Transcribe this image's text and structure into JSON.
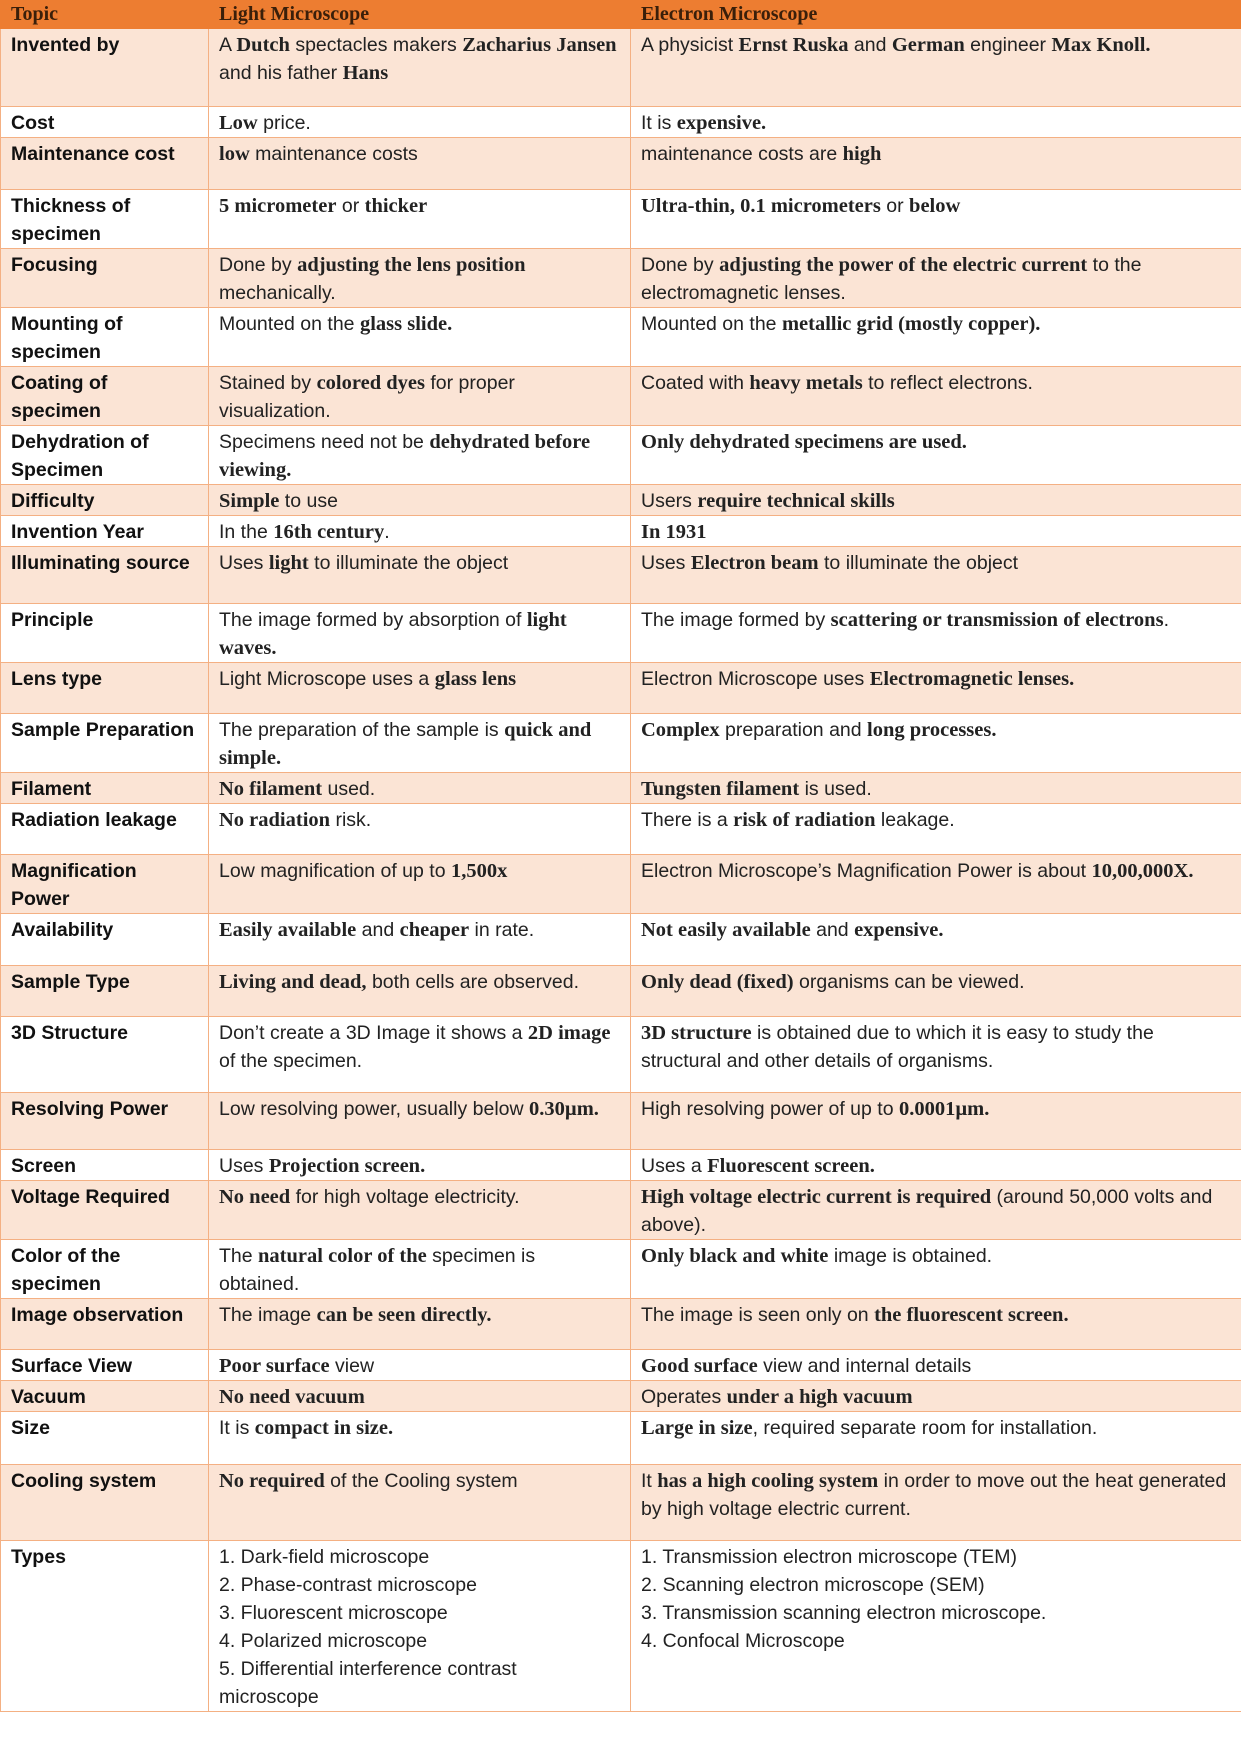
{
  "colors": {
    "header_bg": "#ED7D31",
    "shaded_row_bg": "#FBE4D5",
    "border": "#F4B083"
  },
  "table": {
    "headers": [
      "Topic",
      "Light Microscope",
      "Electron Microscope"
    ],
    "rows": [
      {
        "topic": "Invented by",
        "light": [
          {
            "t": "A "
          },
          {
            "t": "Dutch",
            "b": 1
          },
          {
            "t": " spectacles makers "
          },
          {
            "t": "Zacharius Jansen",
            "b": 1
          },
          {
            "t": " and his father "
          },
          {
            "t": "Hans",
            "b": 1
          }
        ],
        "electron": [
          {
            "t": "A physicist "
          },
          {
            "t": "Ernst Ruska",
            "b": 1
          },
          {
            "t": " and "
          },
          {
            "t": "German",
            "b": 1
          },
          {
            "t": " engineer "
          },
          {
            "t": "Max Knoll.",
            "b": 1
          }
        ]
      },
      {
        "topic": "Cost",
        "light": [
          {
            "t": "Low",
            "b": 1
          },
          {
            "t": " price."
          }
        ],
        "electron": [
          {
            "t": "It is "
          },
          {
            "t": "expensive.",
            "b": 1
          }
        ]
      },
      {
        "topic": "Maintenance cost",
        "light": [
          {
            "t": "low",
            "b": 1
          },
          {
            "t": " maintenance costs"
          }
        ],
        "electron": [
          {
            "t": "maintenance costs are "
          },
          {
            "t": "high",
            "b": 1
          }
        ]
      },
      {
        "topic": "Thickness of specimen",
        "light": [
          {
            "t": "5 micrometer",
            "b": 1
          },
          {
            "t": " or "
          },
          {
            "t": "thicker",
            "b": 1
          }
        ],
        "electron": [
          {
            "t": "Ultra-thin, 0.1 micrometers",
            "b": 1
          },
          {
            "t": " or "
          },
          {
            "t": "below",
            "b": 1
          }
        ]
      },
      {
        "topic": "Focusing",
        "light": [
          {
            "t": "Done by "
          },
          {
            "t": "adjusting the lens position",
            "b": 1
          },
          {
            "t": " mechanically."
          }
        ],
        "electron": [
          {
            "t": "Done by "
          },
          {
            "t": "adjusting the power of the electric current",
            "b": 1
          },
          {
            "t": " to the electromagnetic lenses."
          }
        ]
      },
      {
        "topic": "Mounting of specimen",
        "light": [
          {
            "t": "Mounted on the "
          },
          {
            "t": "glass slide.",
            "b": 1
          }
        ],
        "electron": [
          {
            "t": "Mounted on the "
          },
          {
            "t": "metallic grid (mostly copper).",
            "b": 1
          }
        ]
      },
      {
        "topic": "Coating of specimen",
        "light": [
          {
            "t": "Stained by "
          },
          {
            "t": "colored dyes",
            "b": 1
          },
          {
            "t": " for proper visualization."
          }
        ],
        "electron": [
          {
            "t": "Coated with "
          },
          {
            "t": "heavy metals",
            "b": 1
          },
          {
            "t": " to reflect electrons."
          }
        ]
      },
      {
        "topic": "Dehydration of Specimen",
        "light": [
          {
            "t": "Specimens need not be "
          },
          {
            "t": "dehydrated before viewing.",
            "b": 1
          }
        ],
        "electron": [
          {
            "t": "Only dehydrated specimens are used.",
            "b": 1
          }
        ]
      },
      {
        "topic": "Difficulty",
        "light": [
          {
            "t": "Simple",
            "b": 1
          },
          {
            "t": " to use"
          }
        ],
        "electron": [
          {
            "t": "Users "
          },
          {
            "t": "require technical skills",
            "b": 1
          }
        ]
      },
      {
        "topic": "Invention Year",
        "light": [
          {
            "t": "In the "
          },
          {
            "t": "16th century",
            "b": 1
          },
          {
            "t": "."
          }
        ],
        "electron": [
          {
            "t": "In 1931",
            "b": 1
          }
        ]
      },
      {
        "topic": "Illuminating source",
        "light": [
          {
            "t": "Uses "
          },
          {
            "t": "light",
            "b": 1
          },
          {
            "t": " to illuminate the object"
          }
        ],
        "electron": [
          {
            "t": "Uses "
          },
          {
            "t": "Electron beam",
            "b": 1
          },
          {
            "t": " to illuminate the object"
          }
        ]
      },
      {
        "topic": "Principle",
        "light": [
          {
            "t": "The image formed by absorption of "
          },
          {
            "t": "light waves.",
            "b": 1
          }
        ],
        "electron": [
          {
            "t": "The image formed by "
          },
          {
            "t": "scattering or transmission of electrons",
            "b": 1
          },
          {
            "t": "."
          }
        ]
      },
      {
        "topic": "Lens type",
        "light": [
          {
            "t": "Light Microscope uses a "
          },
          {
            "t": "glass lens",
            "b": 1
          }
        ],
        "electron": [
          {
            "t": "Electron Microscope uses "
          },
          {
            "t": "Electromagnetic lenses.",
            "b": 1
          }
        ]
      },
      {
        "topic": "Sample Preparation",
        "light": [
          {
            "t": "The preparation of the sample is "
          },
          {
            "t": "quick and simple.",
            "b": 1
          }
        ],
        "electron": [
          {
            "t": "Complex",
            "b": 1
          },
          {
            "t": " preparation and "
          },
          {
            "t": "long processes.",
            "b": 1
          }
        ]
      },
      {
        "topic": "Filament",
        "light": [
          {
            "t": "No filament",
            "b": 1
          },
          {
            "t": " used."
          }
        ],
        "electron": [
          {
            "t": "Tungsten filament",
            "b": 1
          },
          {
            "t": " is used."
          }
        ]
      },
      {
        "topic": "Radiation leakage",
        "light": [
          {
            "t": "No radiation",
            "b": 1
          },
          {
            "t": " risk."
          }
        ],
        "electron": [
          {
            "t": "There is a "
          },
          {
            "t": "risk of radiation",
            "b": 1
          },
          {
            "t": " leakage."
          }
        ]
      },
      {
        "topic": "Magnification Power",
        "light": [
          {
            "t": "Low magnification of up to "
          },
          {
            "t": "1,500x",
            "b": 1
          }
        ],
        "electron": [
          {
            "t": "Electron Microscope’s Magnification Power is about "
          },
          {
            "t": "10,00,000X.",
            "b": 1
          }
        ]
      },
      {
        "topic": "Availability",
        "light": [
          {
            "t": "Easily available",
            "b": 1
          },
          {
            "t": " and "
          },
          {
            "t": "cheaper",
            "b": 1
          },
          {
            "t": " in rate."
          }
        ],
        "electron": [
          {
            "t": "Not easily available",
            "b": 1
          },
          {
            "t": " and "
          },
          {
            "t": "expensive.",
            "b": 1
          }
        ]
      },
      {
        "topic": "Sample Type",
        "light": [
          {
            "t": "Living and dead,",
            "b": 1
          },
          {
            "t": " both cells are observed."
          }
        ],
        "electron": [
          {
            "t": "Only dead (fixed)",
            "b": 1
          },
          {
            "t": " organisms can be viewed."
          }
        ]
      },
      {
        "topic": "3D Structure",
        "light": [
          {
            "t": "Don’t create a 3D Image it shows a "
          },
          {
            "t": "2D image",
            "b": 1
          },
          {
            "t": " of the specimen."
          }
        ],
        "electron": [
          {
            "t": "3D structure",
            "b": 1
          },
          {
            "t": " is obtained due to which it is easy to study the structural and other details of organisms."
          }
        ]
      },
      {
        "topic": "Resolving Power",
        "light": [
          {
            "t": "Low resolving power, usually below "
          },
          {
            "t": "0.30µm.",
            "b": 1
          }
        ],
        "electron": [
          {
            "t": "High resolving power of up to "
          },
          {
            "t": "0.0001µm.",
            "b": 1
          }
        ]
      },
      {
        "topic": "Screen",
        "light": [
          {
            "t": "Uses "
          },
          {
            "t": "Projection screen.",
            "b": 1
          }
        ],
        "electron": [
          {
            "t": "Uses a "
          },
          {
            "t": "Fluorescent screen.",
            "b": 1
          }
        ]
      },
      {
        "topic": "Voltage Required",
        "light": [
          {
            "t": "No need",
            "b": 1
          },
          {
            "t": " for high voltage electricity."
          }
        ],
        "electron": [
          {
            "t": "High voltage electric current is required",
            "b": 1
          },
          {
            "t": " (around 50,000 volts and above)."
          }
        ]
      },
      {
        "topic": "Color of the specimen",
        "light": [
          {
            "t": "The "
          },
          {
            "t": "natural color of the",
            "b": 1
          },
          {
            "t": " specimen is obtained."
          }
        ],
        "electron": [
          {
            "t": "Only black and white",
            "b": 1
          },
          {
            "t": " image is obtained."
          }
        ]
      },
      {
        "topic": "Image observation",
        "light": [
          {
            "t": "The image "
          },
          {
            "t": "can be seen directly.",
            "b": 1
          }
        ],
        "electron": [
          {
            "t": "The image is seen only on "
          },
          {
            "t": "the fluorescent screen.",
            "b": 1
          }
        ]
      },
      {
        "topic": "Surface View",
        "light": [
          {
            "t": "Poor surface",
            "b": 1
          },
          {
            "t": " view"
          }
        ],
        "electron": [
          {
            "t": "Good surface",
            "b": 1
          },
          {
            "t": " view and internal details"
          }
        ]
      },
      {
        "topic": "Vacuum",
        "light": [
          {
            "t": "No need vacuum",
            "b": 1
          }
        ],
        "electron": [
          {
            "t": "Operates "
          },
          {
            "t": "under a high vacuum",
            "b": 1
          }
        ]
      },
      {
        "topic": "Size",
        "light": [
          {
            "t": "It is "
          },
          {
            "t": "compact in size.",
            "b": 1
          }
        ],
        "electron": [
          {
            "t": "Large in size",
            "b": 1
          },
          {
            "t": ", required separate room for installation."
          }
        ]
      },
      {
        "topic": "Cooling system",
        "light": [
          {
            "t": "No required",
            "b": 1
          },
          {
            "t": " of the Cooling system"
          }
        ],
        "electron": [
          {
            "t": "It "
          },
          {
            "t": "has a high cooling system",
            "b": 1
          },
          {
            "t": " in order to move out the heat generated by high voltage electric current."
          }
        ]
      },
      {
        "topic": "Types",
        "light_list": [
          "1. Dark-field microscope",
          "2. Phase-contrast microscope",
          "3. Fluorescent microscope",
          "4. Polarized microscope",
          "5. Differential interference contrast microscope"
        ],
        "electron_list": [
          "1. Transmission electron microscope (TEM)",
          "2. Scanning electron microscope (SEM)",
          "3. Transmission scanning electron microscope.",
          "4. Confocal Microscope"
        ]
      }
    ]
  }
}
